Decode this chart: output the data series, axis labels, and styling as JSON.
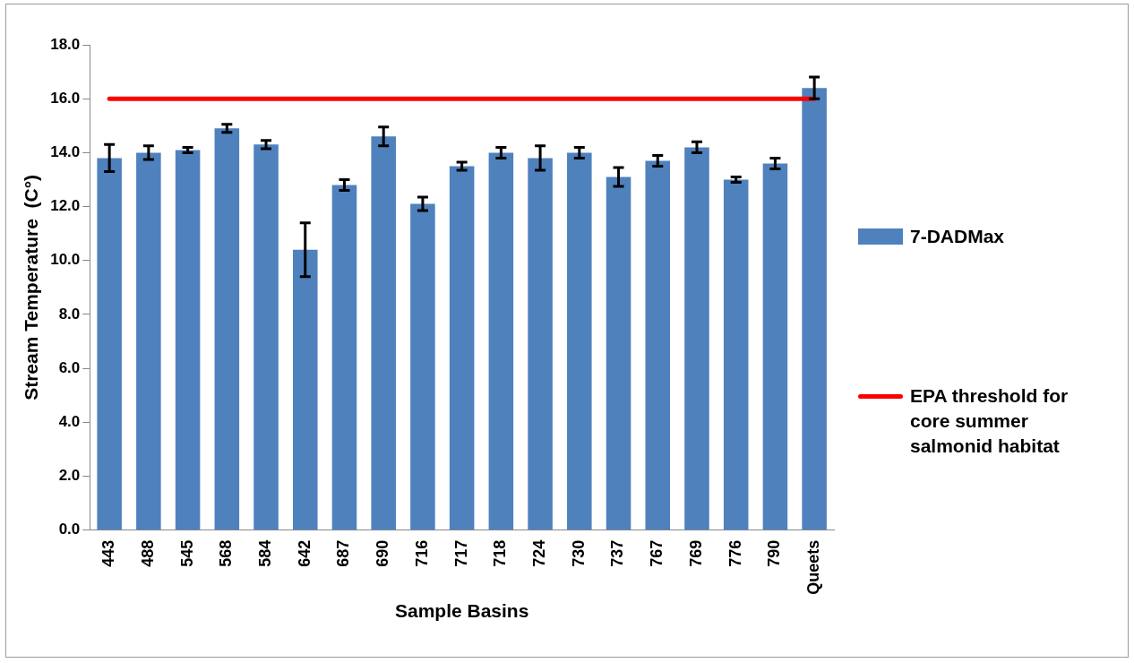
{
  "chart_data": {
    "type": "bar",
    "xlabel": "Sample Basins",
    "ylabel": "Stream Temperature  (C°)",
    "categories": [
      "443",
      "488",
      "545",
      "568",
      "584",
      "642",
      "687",
      "690",
      "716",
      "717",
      "718",
      "724",
      "730",
      "737",
      "767",
      "769",
      "776",
      "790",
      "Queets"
    ],
    "series": [
      {
        "name": "7-DADMax",
        "color": "#4f81bd",
        "values": [
          13.8,
          14.0,
          14.1,
          14.9,
          14.3,
          10.4,
          12.8,
          14.6,
          12.1,
          13.5,
          14.0,
          13.8,
          14.0,
          13.1,
          13.7,
          14.2,
          13.0,
          13.6,
          16.4
        ],
        "errors": [
          0.5,
          0.25,
          0.1,
          0.15,
          0.15,
          1.0,
          0.2,
          0.35,
          0.25,
          0.15,
          0.2,
          0.45,
          0.2,
          0.35,
          0.2,
          0.2,
          0.1,
          0.2,
          0.4
        ]
      },
      {
        "name": "EPA threshold for core summer salmonid habitat",
        "type": "line",
        "color": "#ff0000",
        "marker": "none",
        "values": [
          16,
          16,
          16,
          16,
          16,
          16,
          16,
          16,
          16,
          16,
          16,
          16,
          16,
          16,
          16,
          16,
          16,
          16,
          16
        ]
      }
    ],
    "ylim": [
      0,
      18
    ],
    "yticks": [
      {
        "value": 0,
        "label": "0.0"
      },
      {
        "value": 2,
        "label": "2.0"
      },
      {
        "value": 4,
        "label": "4.0"
      },
      {
        "value": 6,
        "label": "6.0"
      },
      {
        "value": 8,
        "label": "8.0"
      },
      {
        "value": 10,
        "label": "10.0"
      },
      {
        "value": 12,
        "label": "12.0"
      },
      {
        "value": 14,
        "label": "14.0"
      },
      {
        "value": 16,
        "label": "16.0"
      },
      {
        "value": 18,
        "label": "18.0"
      }
    ],
    "grid": false,
    "legend": "right"
  }
}
